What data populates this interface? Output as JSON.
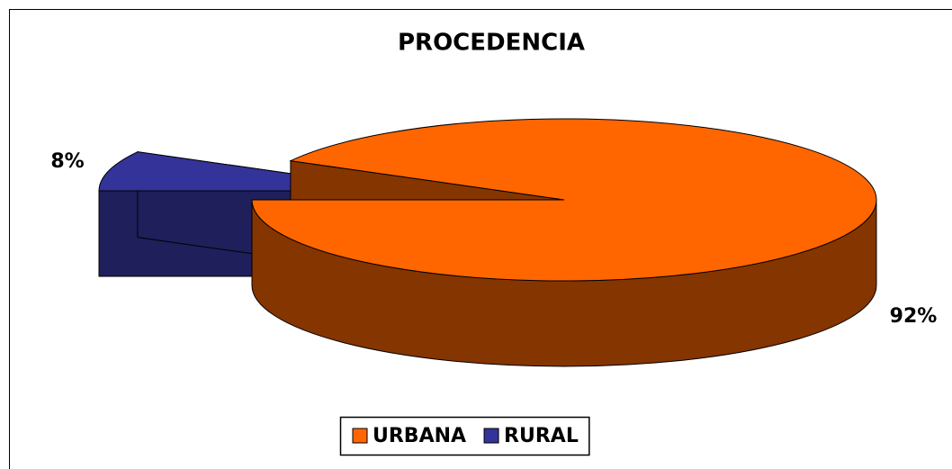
{
  "chart_data": {
    "type": "pie",
    "title": "PROCEDENCIA",
    "categories": [
      "URBANA",
      "RURAL"
    ],
    "values": [
      92,
      8
    ],
    "value_labels": [
      "92%",
      "8%"
    ],
    "colors": [
      "#ff6600",
      "#333399"
    ],
    "legend": "bottom"
  }
}
